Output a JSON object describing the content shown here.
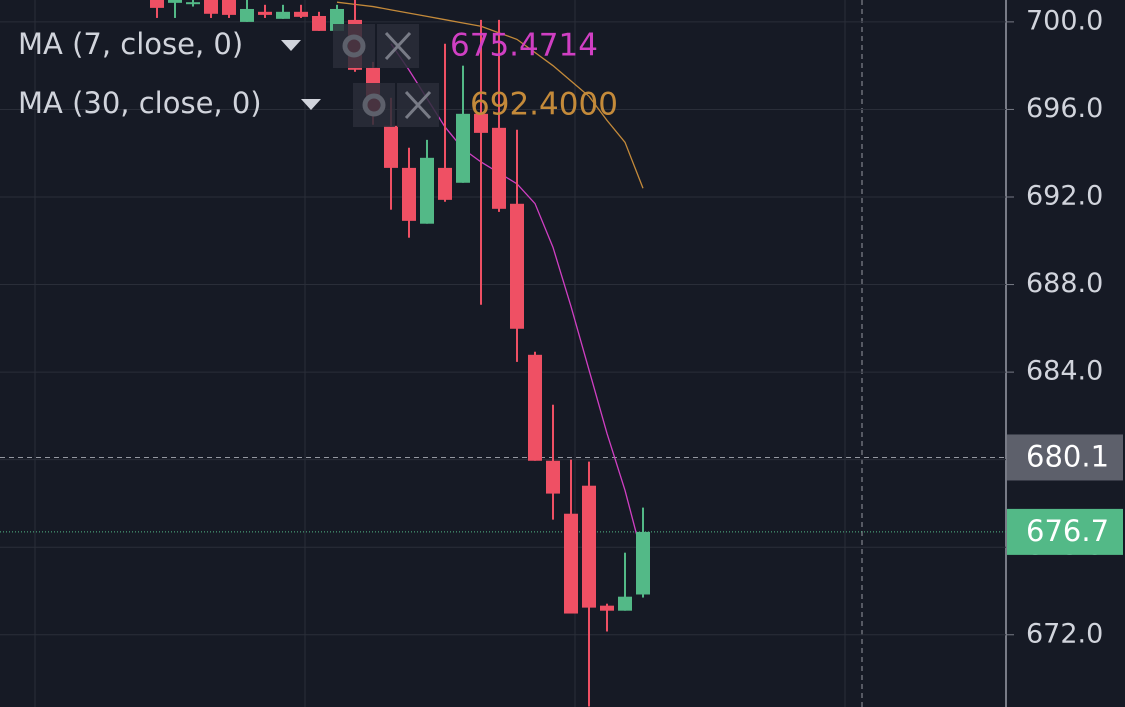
{
  "chart_data": {
    "type": "candlestick",
    "ylim": [
      668.7,
      701.0
    ],
    "yticks": [
      {
        "value": 700,
        "label": "700.0"
      },
      {
        "value": 696,
        "label": "696.0"
      },
      {
        "value": 692,
        "label": "692.0"
      },
      {
        "value": 688,
        "label": "688.0"
      },
      {
        "value": 684,
        "label": "684.0"
      },
      {
        "value": 680,
        "label": "680.0"
      },
      {
        "value": 676,
        "label": "676.0"
      },
      {
        "value": 672,
        "label": "672.0"
      }
    ],
    "grid": true,
    "up_color": "#53b987",
    "down_color": "#ef5064",
    "open": [
      701.0,
      700.87,
      700.9,
      701.0,
      701.0,
      700.0,
      700.46,
      700.14,
      700.46,
      700.27,
      699.59,
      700.09,
      697.9,
      695.25,
      693.33,
      690.78,
      693.33,
      692.65,
      695.8,
      695.16,
      691.69,
      684.79,
      679.95,
      677.53,
      678.81,
      673.33,
      673.1,
      673.84
    ],
    "high": [
      701.2,
      701.2,
      701.1,
      701.2,
      701.2,
      701.0,
      700.78,
      700.78,
      700.78,
      700.46,
      700.78,
      701.0,
      698.17,
      696.53,
      694.25,
      694.61,
      699.0,
      698.0,
      700.09,
      700.09,
      695.07,
      684.93,
      682.51,
      680.0,
      679.91,
      673.42,
      675.75,
      677.81
    ],
    "low": [
      700.18,
      700.18,
      700.7,
      700.18,
      700.18,
      700.0,
      700.18,
      700.14,
      700.18,
      699.59,
      699.59,
      697.72,
      695.3,
      691.42,
      690.14,
      690.78,
      691.78,
      692.65,
      687.08,
      691.32,
      684.47,
      679.95,
      677.26,
      672.97,
      668.72,
      672.15,
      673.1,
      673.7
    ],
    "close": [
      700.64,
      701.0,
      700.9,
      700.37,
      700.32,
      700.59,
      700.32,
      700.46,
      700.23,
      699.59,
      700.59,
      697.81,
      695.84,
      693.33,
      690.91,
      693.79,
      691.87,
      695.8,
      694.93,
      691.46,
      685.98,
      679.95,
      678.45,
      672.97,
      673.24,
      673.1,
      673.74,
      676.7
    ],
    "indicators": [
      {
        "name": "MA (7, close, 0)",
        "color": "#d03fc3",
        "values": [
          null,
          null,
          null,
          null,
          null,
          null,
          null,
          null,
          null,
          null,
          null,
          null,
          null,
          699.0,
          697.8,
          696.5,
          695.2,
          694.2,
          693.6,
          693.1,
          692.6,
          691.7,
          689.7,
          687.0,
          684.1,
          681.2,
          678.6,
          675.4714
        ],
        "last_label": "675.4714"
      },
      {
        "name": "MA (30, close, 0)",
        "color": "#c48a3a",
        "values": [
          null,
          null,
          null,
          null,
          null,
          null,
          null,
          null,
          null,
          null,
          700.9,
          700.8,
          700.7,
          700.55,
          700.4,
          700.25,
          700.1,
          699.95,
          699.8,
          699.5,
          699.2,
          698.6,
          698.0,
          697.3,
          696.6,
          695.5,
          694.5,
          692.4
        ],
        "last_label": "692.4000"
      }
    ],
    "crosshair": 680.1,
    "crosshair_color": "#5d606b",
    "last_price": 676.7
  }
}
